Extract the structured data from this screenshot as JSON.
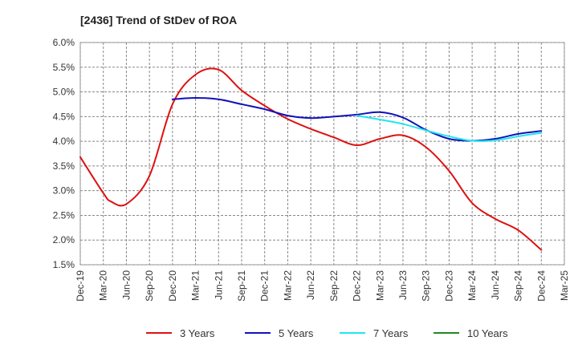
{
  "chart_data": {
    "type": "line",
    "title": "[2436]  Trend of StDev of ROA",
    "xlabel": "",
    "ylabel": "",
    "x_ticks": [
      "Dec-19",
      "Mar-20",
      "Jun-20",
      "Sep-20",
      "Dec-20",
      "Mar-21",
      "Jun-21",
      "Sep-21",
      "Dec-21",
      "Mar-22",
      "Jun-22",
      "Sep-22",
      "Dec-22",
      "Mar-23",
      "Jun-23",
      "Sep-23",
      "Dec-23",
      "Mar-24",
      "Jun-24",
      "Sep-24",
      "Dec-24",
      "Mar-25"
    ],
    "y_ticks": [
      "6.0%",
      "5.5%",
      "5.0%",
      "4.5%",
      "4.0%",
      "3.5%",
      "3.0%",
      "2.5%",
      "2.0%",
      "1.5%"
    ],
    "ylim": [
      1.5,
      6.0
    ],
    "grid": true,
    "legend_position": "bottom",
    "series": [
      {
        "name": "3 Years",
        "color": "#dd1111",
        "points": [
          [
            "Dec-19",
            3.68
          ],
          [
            "Mar-20",
            2.95
          ],
          [
            "Apr-20",
            2.78
          ],
          [
            "Jun-20",
            2.73
          ],
          [
            "Sep-20",
            3.3
          ],
          [
            "Dec-20",
            4.75
          ],
          [
            "Mar-21",
            5.35
          ],
          [
            "Jun-21",
            5.45
          ],
          [
            "Sep-21",
            5.03
          ],
          [
            "Dec-21",
            4.72
          ],
          [
            "Mar-22",
            4.45
          ],
          [
            "Jun-22",
            4.25
          ],
          [
            "Sep-22",
            4.08
          ],
          [
            "Dec-22",
            3.92
          ],
          [
            "Mar-23",
            4.05
          ],
          [
            "Jun-23",
            4.12
          ],
          [
            "Sep-23",
            3.88
          ],
          [
            "Dec-23",
            3.4
          ],
          [
            "Mar-24",
            2.75
          ],
          [
            "Jun-24",
            2.43
          ],
          [
            "Sep-24",
            2.2
          ],
          [
            "Dec-24",
            1.8
          ]
        ]
      },
      {
        "name": "5 Years",
        "color": "#1111bb",
        "points": [
          [
            "Dec-20",
            4.85
          ],
          [
            "Mar-21",
            4.88
          ],
          [
            "Jun-21",
            4.85
          ],
          [
            "Sep-21",
            4.75
          ],
          [
            "Dec-21",
            4.65
          ],
          [
            "Mar-22",
            4.52
          ],
          [
            "Jun-22",
            4.47
          ],
          [
            "Sep-22",
            4.5
          ],
          [
            "Dec-22",
            4.54
          ],
          [
            "Mar-23",
            4.59
          ],
          [
            "Jun-23",
            4.48
          ],
          [
            "Sep-23",
            4.23
          ],
          [
            "Dec-23",
            4.05
          ],
          [
            "Mar-24",
            4.01
          ],
          [
            "Jun-24",
            4.05
          ],
          [
            "Sep-24",
            4.15
          ],
          [
            "Dec-24",
            4.21
          ]
        ]
      },
      {
        "name": "7 Years",
        "color": "#22e5ee",
        "points": [
          [
            "Dec-22",
            4.52
          ],
          [
            "Mar-23",
            4.44
          ],
          [
            "Jun-23",
            4.35
          ],
          [
            "Sep-23",
            4.22
          ],
          [
            "Dec-23",
            4.1
          ],
          [
            "Mar-24",
            4.01
          ],
          [
            "Jun-24",
            4.02
          ],
          [
            "Sep-24",
            4.1
          ],
          [
            "Dec-24",
            4.17
          ]
        ]
      },
      {
        "name": "10 Years",
        "color": "#228822",
        "points": []
      }
    ]
  }
}
